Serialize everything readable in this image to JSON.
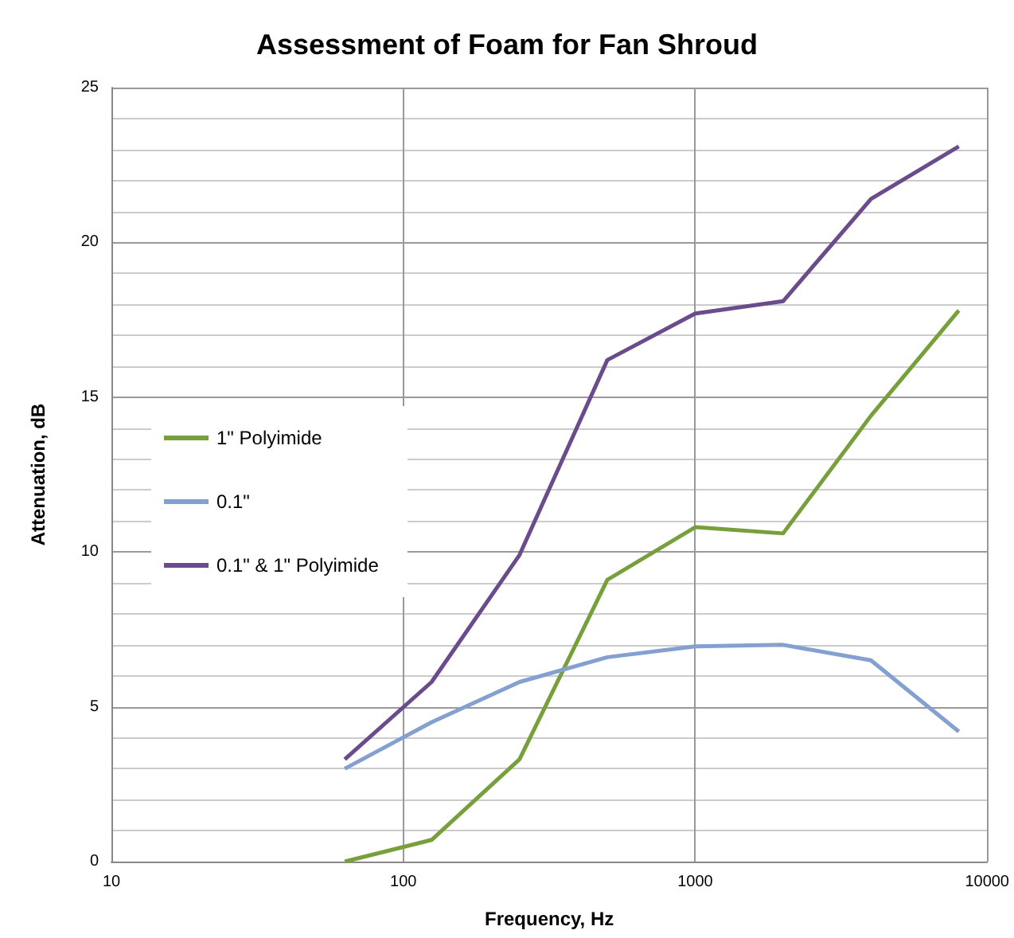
{
  "chart_data": {
    "type": "line",
    "title": "Assessment of Foam for Fan Shroud",
    "xlabel": "Frequency, Hz",
    "ylabel": "Attenuation, dB",
    "log": "x",
    "xlim": [
      10,
      10000
    ],
    "xticks": [
      10,
      100,
      1000,
      10000
    ],
    "ylim": [
      0,
      25
    ],
    "yticks": [
      0,
      5,
      10,
      15,
      20,
      25
    ],
    "grid": true,
    "legend": "left",
    "marker": "none",
    "line_style": "solid",
    "x": [
      63,
      125,
      250,
      500,
      1000,
      2000,
      4000,
      8000
    ],
    "series": [
      {
        "name": "1\" Polyimide",
        "color": "#77a03c",
        "values": [
          0,
          0.7,
          3.3,
          9.1,
          10.8,
          10.6,
          14.4,
          17.8
        ]
      },
      {
        "name": "0.1\"",
        "color": "#84a0d0",
        "values": [
          3.0,
          4.5,
          5.8,
          6.6,
          6.95,
          7.0,
          6.5,
          4.2
        ]
      },
      {
        "name": "0.1\" & 1\" Polyimide",
        "color": "#6a4c8c",
        "values": [
          3.3,
          5.8,
          9.9,
          16.2,
          17.7,
          18.1,
          21.4,
          23.1
        ]
      }
    ]
  }
}
